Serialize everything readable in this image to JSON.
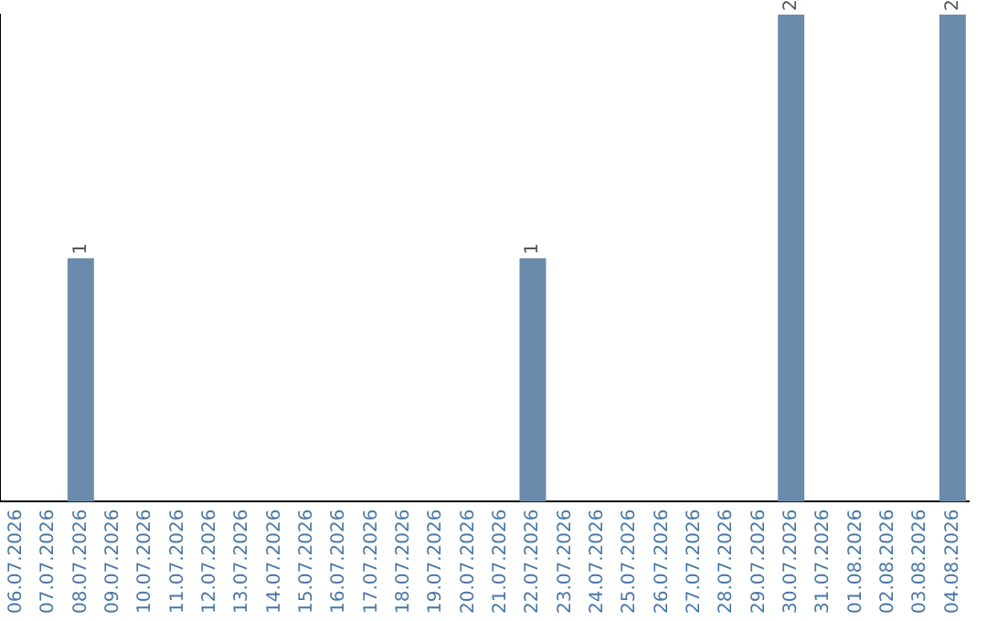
{
  "chart_data": {
    "type": "bar",
    "categories": [
      "06.07.2026",
      "07.07.2026",
      "08.07.2026",
      "09.07.2026",
      "10.07.2026",
      "11.07.2026",
      "12.07.2026",
      "13.07.2026",
      "14.07.2026",
      "15.07.2026",
      "16.07.2026",
      "17.07.2026",
      "18.07.2026",
      "19.07.2026",
      "20.07.2026",
      "21.07.2026",
      "22.07.2026",
      "23.07.2026",
      "24.07.2026",
      "25.07.2026",
      "26.07.2026",
      "27.07.2026",
      "28.07.2026",
      "29.07.2026",
      "30.07.2026",
      "31.07.2026",
      "01.08.2026",
      "02.08.2026",
      "03.08.2026",
      "04.08.2026"
    ],
    "values": [
      0,
      0,
      1,
      0,
      0,
      0,
      0,
      0,
      0,
      0,
      0,
      0,
      0,
      0,
      0,
      0,
      1,
      0,
      0,
      0,
      0,
      0,
      0,
      0,
      2,
      0,
      0,
      0,
      0,
      2
    ],
    "color": "#6a8bab",
    "value_labels": [
      null,
      null,
      "1",
      null,
      null,
      null,
      null,
      null,
      null,
      null,
      null,
      null,
      null,
      null,
      null,
      null,
      "1",
      null,
      null,
      null,
      null,
      null,
      null,
      null,
      "2",
      null,
      null,
      null,
      null,
      "2"
    ],
    "grid": false,
    "legend": false,
    "tick_labels": "x"
  }
}
